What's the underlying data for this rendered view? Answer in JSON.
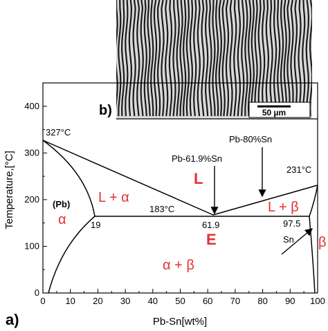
{
  "panel_a": {
    "label": "a)",
    "xlabel": "Pb-Sn[wt%]",
    "ylabel": "Temperature,[°C]",
    "x_ticks": [
      "0",
      "10",
      "20",
      "30",
      "40",
      "50",
      "60",
      "70",
      "80",
      "90",
      "100"
    ],
    "y_ticks": [
      "0",
      "100",
      "200",
      "300",
      "400"
    ]
  },
  "panel_b": {
    "label": "b)",
    "scale_bar": "50 µm"
  },
  "annotations": {
    "pb_melt": "327°C",
    "sn_melt": "231°C",
    "eutectic_temp": "183°C",
    "pb_phase": "(Pb)",
    "alpha": "α",
    "l_plus_alpha": "L + α",
    "l": "L",
    "eutectic_label": "Pb-61.9%Sn",
    "pb80": "Pb-80%Sn",
    "l_plus_beta": "L + β",
    "e_point": "E",
    "alpha_plus_beta": "α + β",
    "comp_19": "19",
    "comp_619": "61.9",
    "comp_975": "97.5",
    "sn": "Sn",
    "beta": "β"
  },
  "colors": {
    "phase_label": "#e53030",
    "line": "#000000"
  },
  "chart_data": {
    "type": "phase-diagram",
    "xlim": [
      0,
      100
    ],
    "ylim": [
      0,
      450
    ],
    "melting_points": {
      "Pb": 327,
      "Sn": 231
    },
    "eutectic": {
      "composition": 61.9,
      "temperature": 183
    },
    "eutectic_line_ends": [
      19,
      97.5
    ],
    "liquidus_alpha": [
      [
        0,
        327
      ],
      [
        61.9,
        183
      ]
    ],
    "liquidus_beta": [
      [
        61.9,
        183
      ],
      [
        100,
        231
      ]
    ],
    "solidus_alpha": [
      [
        0,
        327
      ],
      [
        19,
        183
      ]
    ],
    "solvus_alpha": [
      [
        19,
        183
      ],
      [
        5,
        0
      ]
    ],
    "solidus_beta": [
      [
        97.5,
        183
      ],
      [
        100,
        231
      ]
    ],
    "solvus_beta": [
      [
        97.5,
        183
      ],
      [
        99,
        0
      ]
    ]
  }
}
